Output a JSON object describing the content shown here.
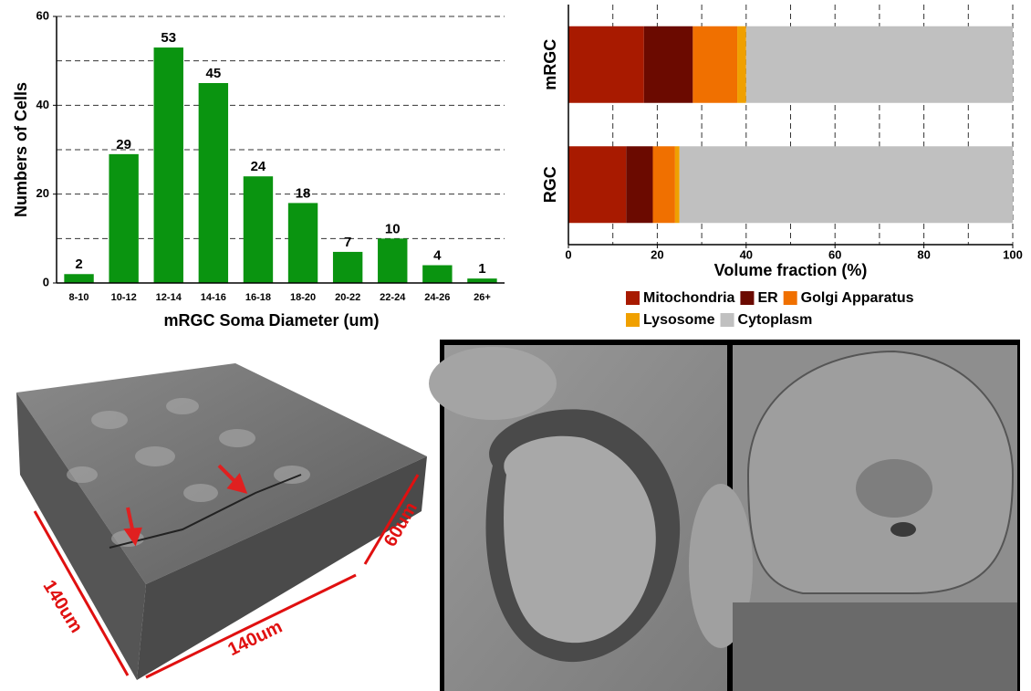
{
  "chart_data": [
    {
      "type": "bar",
      "xlabel": "mRGC Soma Diameter (um)",
      "ylabel": "Numbers of Cells",
      "categories": [
        "8-10",
        "10-12",
        "12-14",
        "14-16",
        "16-18",
        "18-20",
        "20-22",
        "22-24",
        "24-26",
        "26+"
      ],
      "values": [
        2,
        29,
        53,
        45,
        24,
        18,
        7,
        10,
        4,
        1
      ],
      "color": "#0a9410",
      "ylim": [
        0,
        60
      ],
      "yticks": [
        0,
        20,
        40,
        60
      ],
      "minor_yticks": [
        10,
        30,
        50
      ],
      "grid": true
    },
    {
      "type": "stacked_barh",
      "xlabel": "Volume fraction (%)",
      "categories": [
        "mRGC",
        "RGC"
      ],
      "series": [
        {
          "name": "Mitochondria",
          "color": "#a81a00",
          "values": [
            17,
            13
          ]
        },
        {
          "name": "ER",
          "color": "#6b0a00",
          "values": [
            11,
            6
          ]
        },
        {
          "name": "Golgi Apparatus",
          "color": "#f07000",
          "values": [
            10,
            5
          ]
        },
        {
          "name": "Lysosome",
          "color": "#f0a000",
          "values": [
            2,
            1
          ]
        },
        {
          "name": "Cytoplasm",
          "color": "#c0c0c0",
          "values": [
            60,
            75
          ]
        }
      ],
      "xlim": [
        0,
        100
      ],
      "xticks": [
        0,
        20,
        40,
        60,
        80,
        100
      ],
      "minor_xticks": [
        10,
        30,
        50,
        70,
        90
      ],
      "grid": true
    }
  ],
  "volume_labels": {
    "depth": "140um",
    "width": "140um",
    "height": "60um"
  }
}
